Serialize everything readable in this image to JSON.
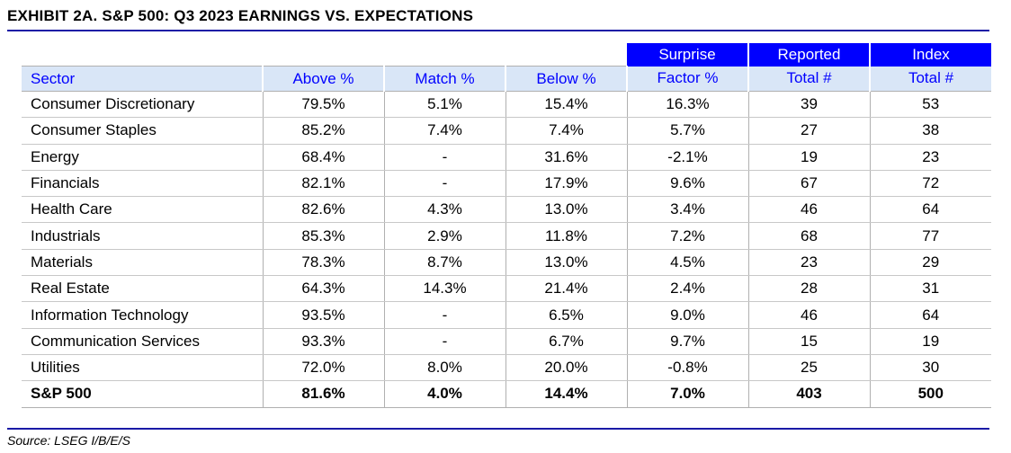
{
  "title": "EXHIBIT 2A.  S&P 500: Q3 2023 EARNINGS VS. EXPECTATIONS",
  "source": "Source: LSEG I/B/E/S",
  "header_top": {
    "surprise": "Surprise",
    "reported": "Reported",
    "index": "Index"
  },
  "columns": [
    "Sector",
    "Above %",
    "Match %",
    "Below %",
    "Factor %",
    "Total #",
    "Total #"
  ],
  "rows": [
    [
      "Consumer Discretionary",
      "79.5%",
      "5.1%",
      "15.4%",
      "16.3%",
      "39",
      "53"
    ],
    [
      "Consumer Staples",
      "85.2%",
      "7.4%",
      "7.4%",
      "5.7%",
      "27",
      "38"
    ],
    [
      "Energy",
      "68.4%",
      "-",
      "31.6%",
      "-2.1%",
      "19",
      "23"
    ],
    [
      "Financials",
      "82.1%",
      "-",
      "17.9%",
      "9.6%",
      "67",
      "72"
    ],
    [
      "Health Care",
      "82.6%",
      "4.3%",
      "13.0%",
      "3.4%",
      "46",
      "64"
    ],
    [
      "Industrials",
      "85.3%",
      "2.9%",
      "11.8%",
      "7.2%",
      "68",
      "77"
    ],
    [
      "Materials",
      "78.3%",
      "8.7%",
      "13.0%",
      "4.5%",
      "23",
      "29"
    ],
    [
      "Real Estate",
      "64.3%",
      "14.3%",
      "21.4%",
      "2.4%",
      "28",
      "31"
    ],
    [
      "Information Technology",
      "93.5%",
      "-",
      "6.5%",
      "9.0%",
      "46",
      "64"
    ],
    [
      "Communication Services",
      "93.3%",
      "-",
      "6.7%",
      "9.7%",
      "15",
      "19"
    ],
    [
      "Utilities",
      "72.0%",
      "8.0%",
      "20.0%",
      "-0.8%",
      "25",
      "30"
    ]
  ],
  "total": [
    "S&P 500",
    "81.6%",
    "4.0%",
    "14.4%",
    "7.0%",
    "403",
    "500"
  ],
  "colors": {
    "header_blue": "#0000ff",
    "header_light": "#d9e6f7",
    "rule": "#1a1aa6"
  }
}
